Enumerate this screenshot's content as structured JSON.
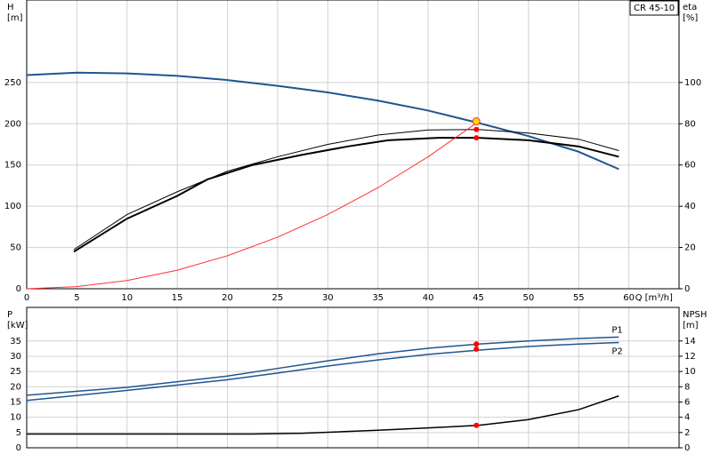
{
  "chart_data": [
    {
      "type": "line",
      "annotation": "CR 45-10",
      "ylabel": "H",
      "yunit": "[m]",
      "y2label": "eta",
      "y2unit": "[%]",
      "xlabel": "Q [m³/h]",
      "xlim": [
        0,
        65
      ],
      "xticks": [
        0,
        5,
        10,
        15,
        20,
        25,
        30,
        35,
        40,
        45,
        50,
        55,
        60
      ],
      "ylim": [
        0,
        350
      ],
      "yticks": [
        0,
        50,
        100,
        150,
        200,
        250
      ],
      "y2lim": [
        0,
        140
      ],
      "y2ticks": [
        0,
        20,
        40,
        60,
        80,
        100
      ],
      "grid": true,
      "series": [
        {
          "color": "#1f5591",
          "width": 2,
          "x": [
            0,
            5,
            10,
            15,
            20,
            25,
            30,
            35,
            40,
            45,
            50,
            55,
            59
          ],
          "values": [
            259,
            262,
            261,
            258,
            253,
            246,
            238,
            228,
            216,
            201,
            185,
            166,
            145
          ]
        },
        {
          "color": "#000000",
          "width": 1,
          "axis": "y2",
          "x": [
            4.7,
            10,
            15,
            20,
            25,
            30,
            35,
            40,
            45,
            50,
            55,
            59
          ],
          "values": [
            19,
            36,
            47,
            57,
            64,
            70,
            74.5,
            77,
            77.2,
            75.5,
            72.5,
            67
          ]
        },
        {
          "color": "#000000",
          "width": 2,
          "axis": "y2",
          "x": [
            4.7,
            10,
            15,
            18,
            22.5,
            27.5,
            32,
            36,
            41,
            45,
            50,
            55,
            59
          ],
          "values": [
            18,
            34,
            45,
            53,
            60,
            65,
            69,
            72,
            73.2,
            73.2,
            72,
            69,
            64
          ]
        },
        {
          "color": "#ff3030",
          "width": 1,
          "x": [
            0,
            5,
            10,
            15,
            20,
            25,
            30,
            35,
            40,
            45
          ],
          "values": [
            0,
            2.5,
            10,
            22.5,
            40,
            62.5,
            90,
            122.5,
            160,
            202.5
          ]
        }
      ],
      "points": [
        {
          "x": 44.8,
          "y": 203,
          "color": "#ffd700"
        },
        {
          "x": 44.8,
          "y": 77.2,
          "axis": "y2",
          "color": "#ff0000"
        },
        {
          "x": 44.8,
          "y": 73.2,
          "axis": "y2",
          "color": "#ff0000"
        }
      ]
    },
    {
      "type": "line",
      "ylabel": "P",
      "yunit": "[kW]",
      "y2label": "NPSH",
      "y2unit": "[m]",
      "xlim": [
        0,
        65
      ],
      "ylim": [
        0,
        46
      ],
      "yticks": [
        0,
        5,
        10,
        15,
        20,
        25,
        30,
        35
      ],
      "y2lim": [
        0,
        18.4
      ],
      "y2ticks": [
        0,
        2,
        4,
        6,
        8,
        10,
        12,
        14
      ],
      "grid": true,
      "series": [
        {
          "name": "P1",
          "color": "#1f5591",
          "width": 1.5,
          "x": [
            0,
            10,
            20,
            25,
            30,
            35,
            40,
            45,
            50,
            55,
            59
          ],
          "values": [
            17.2,
            19.8,
            23.5,
            26,
            28.5,
            30.8,
            32.6,
            34,
            35,
            35.8,
            36.3
          ]
        },
        {
          "name": "P2",
          "color": "#1f5591",
          "width": 1.5,
          "x": [
            0,
            10,
            20,
            25,
            30,
            35,
            40,
            45,
            50,
            55,
            59
          ],
          "values": [
            15.5,
            18.8,
            22.3,
            24.5,
            26.8,
            28.8,
            30.6,
            32,
            33.2,
            34,
            34.5
          ]
        },
        {
          "color": "#000000",
          "width": 1.5,
          "axis": "y2",
          "x": [
            0,
            22.5,
            27.5,
            35,
            40,
            45,
            50,
            55,
            59
          ],
          "values": [
            1.8,
            1.8,
            1.9,
            2.3,
            2.6,
            2.94,
            3.7,
            5,
            6.8
          ]
        }
      ],
      "points": [
        {
          "x": 44.8,
          "y": 34,
          "color": "#ff0000"
        },
        {
          "x": 44.8,
          "y": 32.3,
          "color": "#ff0000"
        },
        {
          "x": 44.8,
          "y": 2.94,
          "axis": "y2",
          "color": "#ff0000"
        }
      ]
    }
  ]
}
